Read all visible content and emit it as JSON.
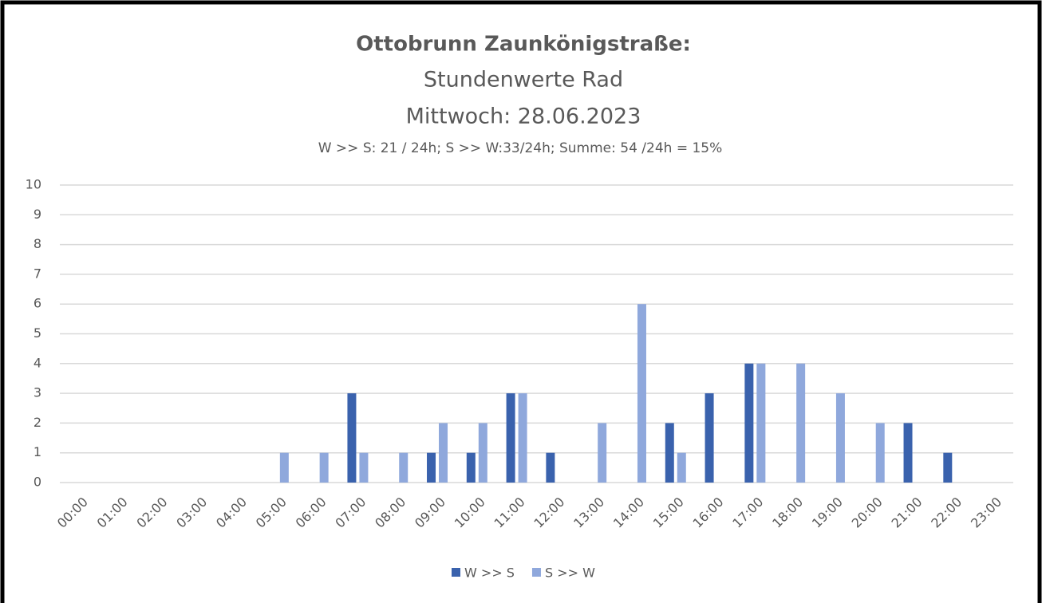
{
  "chart_data": {
    "type": "bar",
    "title": "Ottobrunn Zaunkönigstraße:",
    "subtitle": [
      "Stundenwerte Rad",
      "Mittwoch: 28.06.2023"
    ],
    "annotation": "W >> S: 21 / 24h; S >> W:33/24h; Summe: 54 /24h = 15%",
    "categories": [
      "00:00",
      "01:00",
      "02:00",
      "03:00",
      "04:00",
      "05:00",
      "06:00",
      "07:00",
      "08:00",
      "09:00",
      "10:00",
      "11:00",
      "12:00",
      "13:00",
      "14:00",
      "15:00",
      "16:00",
      "17:00",
      "18:00",
      "19:00",
      "20:00",
      "21:00",
      "22:00",
      "23:00"
    ],
    "series": [
      {
        "name": "W >> S",
        "color": "#3a62ad",
        "values": [
          0,
          0,
          0,
          0,
          0,
          0,
          0,
          3,
          0,
          1,
          1,
          3,
          1,
          0,
          0,
          2,
          3,
          4,
          0,
          0,
          0,
          2,
          1,
          0
        ]
      },
      {
        "name": "S >> W",
        "color": "#8fa8dc",
        "values": [
          0,
          0,
          0,
          0,
          0,
          1,
          1,
          1,
          1,
          2,
          2,
          3,
          0,
          2,
          6,
          1,
          0,
          4,
          4,
          3,
          2,
          0,
          0,
          0
        ]
      }
    ],
    "ylim": [
      0,
      10
    ],
    "yticks": [
      0,
      1,
      2,
      3,
      4,
      5,
      6,
      7,
      8,
      9,
      10
    ],
    "grid": true,
    "legend": "bottom"
  }
}
